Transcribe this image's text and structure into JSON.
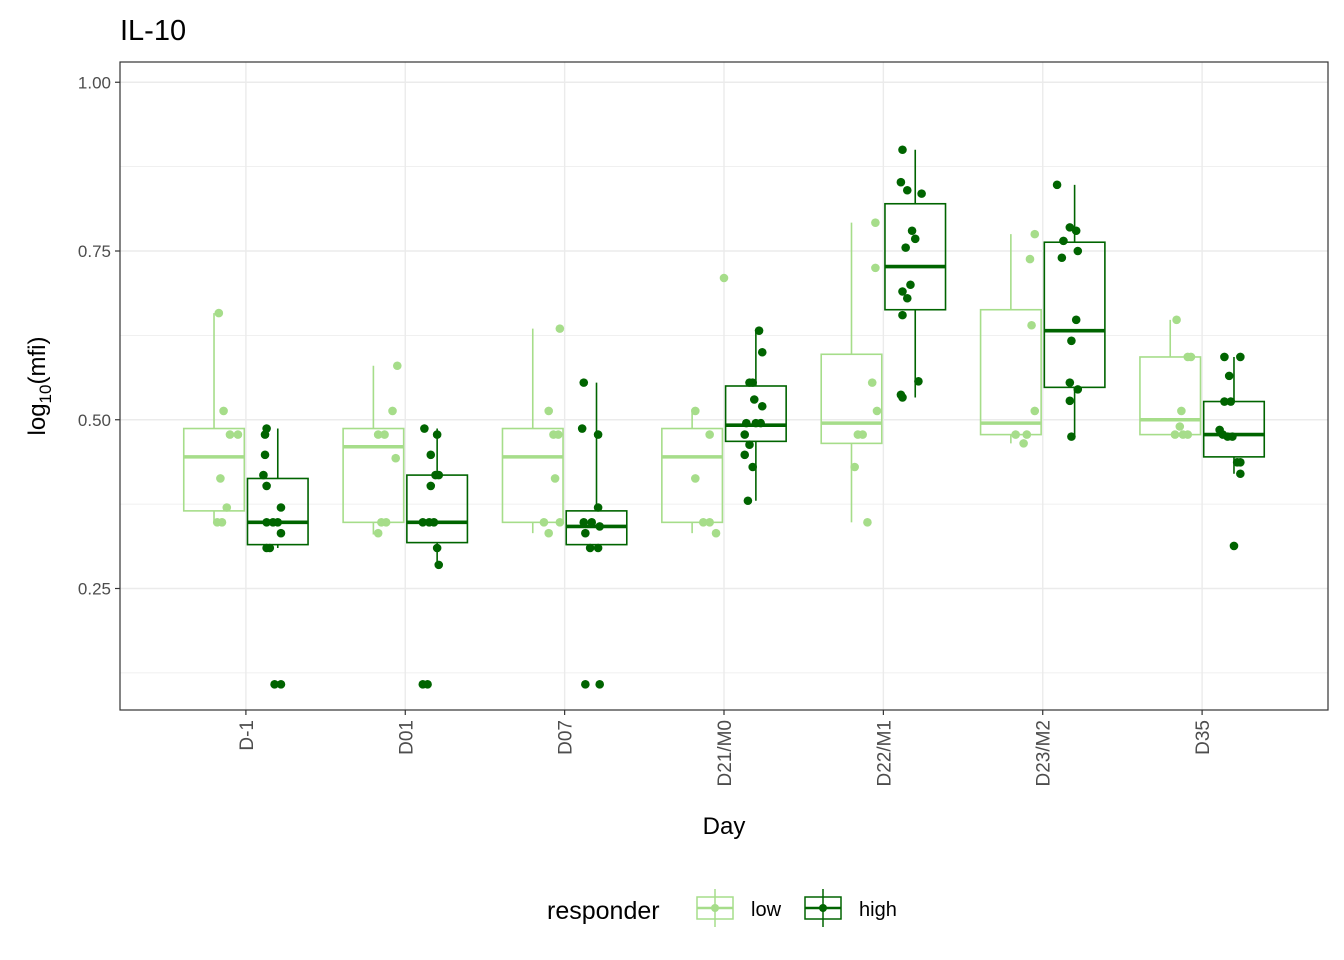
{
  "chart_data": {
    "type": "box",
    "title": "IL-10",
    "xlabel": "Day",
    "ylabel_base": "log",
    "ylabel_sub": "10",
    "ylabel_rest": "(mfi)",
    "ylim": [
      0.07,
      1.03
    ],
    "yticks": [
      0.25,
      0.5,
      0.75,
      1.0
    ],
    "ytick_labels": [
      "0.25",
      "0.50",
      "0.75",
      "1.00"
    ],
    "grid": true,
    "legend_position": "bottom",
    "categories": [
      "D-1",
      "D01",
      "D07",
      "D21/M0",
      "D22/M1",
      "D23/M2",
      "D35"
    ],
    "legend": {
      "title": "responder",
      "entries": [
        "low",
        "high"
      ]
    },
    "colors": {
      "low": "#a6dd8a",
      "high": "#006400",
      "grid": "#ebebeb",
      "panel_border": "#333333",
      "tick": "#333333"
    },
    "series": [
      {
        "name": "low",
        "boxes": [
          {
            "category": "D-1",
            "q1": 0.365,
            "median": 0.445,
            "q3": 0.487,
            "whisker_low": 0.348,
            "whisker_high": 0.658,
            "points": [
              [
                -0.17,
                0.658
              ],
              [
                -0.14,
                0.513
              ],
              [
                -0.05,
                0.478
              ],
              [
                -0.1,
                0.478
              ],
              [
                -0.16,
                0.413
              ],
              [
                -0.12,
                0.37
              ],
              [
                -0.18,
                0.348
              ],
              [
                -0.15,
                0.348
              ]
            ]
          },
          {
            "category": "D01",
            "q1": 0.348,
            "median": 0.46,
            "q3": 0.487,
            "whisker_low": 0.33,
            "whisker_high": 0.58,
            "points": [
              [
                -0.05,
                0.58
              ],
              [
                -0.08,
                0.513
              ],
              [
                -0.17,
                0.478
              ],
              [
                -0.13,
                0.478
              ],
              [
                -0.06,
                0.443
              ],
              [
                -0.15,
                0.348
              ],
              [
                -0.17,
                0.332
              ],
              [
                -0.12,
                0.348
              ]
            ]
          },
          {
            "category": "D07",
            "q1": 0.348,
            "median": 0.445,
            "q3": 0.487,
            "whisker_low": 0.332,
            "whisker_high": 0.635,
            "points": [
              [
                -0.03,
                0.635
              ],
              [
                -0.1,
                0.513
              ],
              [
                -0.04,
                0.478
              ],
              [
                -0.07,
                0.478
              ],
              [
                -0.06,
                0.413
              ],
              [
                -0.13,
                0.348
              ],
              [
                -0.03,
                0.348
              ],
              [
                -0.1,
                0.332
              ]
            ]
          },
          {
            "category": "D21/M0",
            "q1": 0.348,
            "median": 0.445,
            "q3": 0.487,
            "whisker_low": 0.332,
            "whisker_high": 0.513,
            "points": [
              [
                -0.18,
                0.513
              ],
              [
                -0.09,
                0.478
              ],
              [
                -0.18,
                0.413
              ],
              [
                -0.13,
                0.348
              ],
              [
                -0.09,
                0.348
              ],
              [
                -0.05,
                0.332
              ],
              [
                0.0,
                0.71
              ]
            ]
          },
          {
            "category": "D22/M1",
            "q1": 0.465,
            "median": 0.495,
            "q3": 0.597,
            "whisker_low": 0.348,
            "whisker_high": 0.792,
            "points": [
              [
                -0.05,
                0.792
              ],
              [
                -0.05,
                0.725
              ],
              [
                -0.07,
                0.555
              ],
              [
                -0.04,
                0.513
              ],
              [
                -0.16,
                0.478
              ],
              [
                -0.13,
                0.478
              ],
              [
                -0.18,
                0.43
              ],
              [
                -0.1,
                0.348
              ]
            ]
          },
          {
            "category": "D23/M2",
            "q1": 0.478,
            "median": 0.495,
            "q3": 0.663,
            "whisker_low": 0.465,
            "whisker_high": 0.775,
            "points": [
              [
                -0.05,
                0.775
              ],
              [
                -0.08,
                0.738
              ],
              [
                -0.07,
                0.64
              ],
              [
                -0.05,
                0.513
              ],
              [
                -0.17,
                0.478
              ],
              [
                -0.1,
                0.478
              ],
              [
                -0.12,
                0.465
              ]
            ]
          },
          {
            "category": "D35",
            "q1": 0.478,
            "median": 0.5,
            "q3": 0.593,
            "whisker_low": 0.478,
            "whisker_high": 0.648,
            "points": [
              [
                -0.16,
                0.648
              ],
              [
                -0.09,
                0.593
              ],
              [
                -0.07,
                0.593
              ],
              [
                -0.13,
                0.513
              ],
              [
                -0.14,
                0.49
              ],
              [
                -0.17,
                0.478
              ],
              [
                -0.12,
                0.478
              ],
              [
                -0.09,
                0.478
              ]
            ]
          }
        ]
      },
      {
        "name": "high",
        "boxes": [
          {
            "category": "D-1",
            "q1": 0.315,
            "median": 0.348,
            "q3": 0.413,
            "whisker_low": 0.31,
            "whisker_high": 0.487,
            "points": [
              [
                0.13,
                0.487
              ],
              [
                0.12,
                0.478
              ],
              [
                0.12,
                0.448
              ],
              [
                0.11,
                0.418
              ],
              [
                0.13,
                0.402
              ],
              [
                0.22,
                0.37
              ],
              [
                0.13,
                0.348
              ],
              [
                0.17,
                0.348
              ],
              [
                0.2,
                0.348
              ],
              [
                0.22,
                0.332
              ],
              [
                0.13,
                0.31
              ],
              [
                0.15,
                0.31
              ],
              [
                0.18,
                0.108
              ],
              [
                0.22,
                0.108
              ]
            ]
          },
          {
            "category": "D01",
            "q1": 0.318,
            "median": 0.348,
            "q3": 0.418,
            "whisker_low": 0.285,
            "whisker_high": 0.487,
            "points": [
              [
                0.12,
                0.487
              ],
              [
                0.2,
                0.478
              ],
              [
                0.16,
                0.448
              ],
              [
                0.19,
                0.418
              ],
              [
                0.21,
                0.418
              ],
              [
                0.16,
                0.402
              ],
              [
                0.11,
                0.348
              ],
              [
                0.15,
                0.348
              ],
              [
                0.18,
                0.348
              ],
              [
                0.2,
                0.31
              ],
              [
                0.21,
                0.285
              ],
              [
                0.11,
                0.108
              ],
              [
                0.14,
                0.108
              ]
            ]
          },
          {
            "category": "D07",
            "q1": 0.315,
            "median": 0.342,
            "q3": 0.365,
            "whisker_low": 0.31,
            "whisker_high": 0.555,
            "points": [
              [
                0.12,
                0.555
              ],
              [
                0.11,
                0.487
              ],
              [
                0.21,
                0.478
              ],
              [
                0.21,
                0.37
              ],
              [
                0.12,
                0.348
              ],
              [
                0.17,
                0.348
              ],
              [
                0.22,
                0.342
              ],
              [
                0.13,
                0.332
              ],
              [
                0.16,
                0.31
              ],
              [
                0.21,
                0.31
              ],
              [
                0.13,
                0.108
              ],
              [
                0.22,
                0.108
              ]
            ]
          },
          {
            "category": "D21/M0",
            "q1": 0.468,
            "median": 0.492,
            "q3": 0.55,
            "whisker_low": 0.38,
            "whisker_high": 0.632,
            "points": [
              [
                0.22,
                0.632
              ],
              [
                0.24,
                0.6
              ],
              [
                0.16,
                0.555
              ],
              [
                0.18,
                0.555
              ],
              [
                0.19,
                0.53
              ],
              [
                0.24,
                0.52
              ],
              [
                0.14,
                0.495
              ],
              [
                0.2,
                0.495
              ],
              [
                0.23,
                0.495
              ],
              [
                0.13,
                0.478
              ],
              [
                0.16,
                0.463
              ],
              [
                0.13,
                0.448
              ],
              [
                0.18,
                0.43
              ],
              [
                0.15,
                0.38
              ]
            ]
          },
          {
            "category": "D22/M1",
            "q1": 0.663,
            "median": 0.727,
            "q3": 0.82,
            "whisker_low": 0.533,
            "whisker_high": 0.9,
            "points": [
              [
                0.12,
                0.9
              ],
              [
                0.11,
                0.852
              ],
              [
                0.15,
                0.84
              ],
              [
                0.24,
                0.835
              ],
              [
                0.18,
                0.78
              ],
              [
                0.2,
                0.768
              ],
              [
                0.14,
                0.755
              ],
              [
                0.17,
                0.7
              ],
              [
                0.12,
                0.69
              ],
              [
                0.15,
                0.68
              ],
              [
                0.12,
                0.655
              ],
              [
                0.22,
                0.557
              ],
              [
                0.11,
                0.537
              ],
              [
                0.12,
                0.533
              ]
            ]
          },
          {
            "category": "D23/M2",
            "q1": 0.548,
            "median": 0.632,
            "q3": 0.763,
            "whisker_low": 0.475,
            "whisker_high": 0.848,
            "points": [
              [
                0.09,
                0.848
              ],
              [
                0.17,
                0.785
              ],
              [
                0.21,
                0.78
              ],
              [
                0.13,
                0.765
              ],
              [
                0.22,
                0.75
              ],
              [
                0.12,
                0.74
              ],
              [
                0.21,
                0.648
              ],
              [
                0.18,
                0.617
              ],
              [
                0.17,
                0.555
              ],
              [
                0.22,
                0.545
              ],
              [
                0.17,
                0.528
              ],
              [
                0.18,
                0.475
              ]
            ]
          },
          {
            "category": "D35",
            "q1": 0.445,
            "median": 0.478,
            "q3": 0.527,
            "whisker_low": 0.42,
            "whisker_high": 0.593,
            "points": [
              [
                0.14,
                0.593
              ],
              [
                0.24,
                0.593
              ],
              [
                0.17,
                0.565
              ],
              [
                0.14,
                0.527
              ],
              [
                0.18,
                0.527
              ],
              [
                0.11,
                0.485
              ],
              [
                0.13,
                0.478
              ],
              [
                0.16,
                0.475
              ],
              [
                0.19,
                0.475
              ],
              [
                0.22,
                0.437
              ],
              [
                0.24,
                0.437
              ],
              [
                0.24,
                0.42
              ],
              [
                0.2,
                0.313
              ]
            ]
          }
        ]
      }
    ]
  }
}
